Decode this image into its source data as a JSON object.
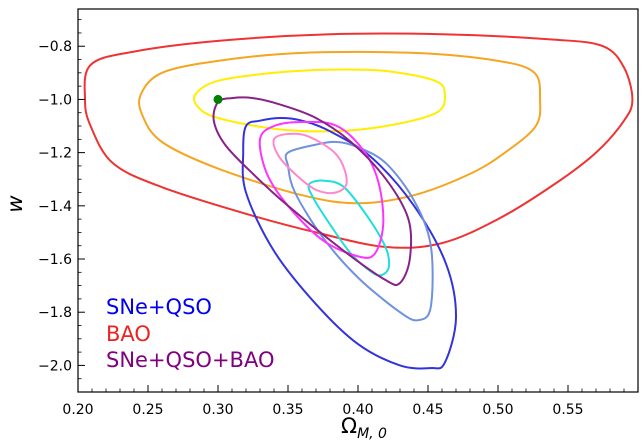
{
  "chart_data": {
    "type": "contour",
    "xlabel": "Ω",
    "xlabel_sub": "M, 0",
    "ylabel": "w",
    "xlim": [
      0.2,
      0.6
    ],
    "ylim": [
      -2.1,
      -0.66
    ],
    "x_ticks": [
      0.2,
      0.25,
      0.3,
      0.35,
      0.4,
      0.45,
      0.5,
      0.55
    ],
    "x_tick_labels": [
      "0.20",
      "0.25",
      "0.30",
      "0.35",
      "0.40",
      "0.45",
      "0.50",
      "0.55"
    ],
    "y_ticks": [
      -0.8,
      -1.0,
      -1.2,
      -1.4,
      -1.6,
      -1.8,
      -2.0
    ],
    "y_tick_labels": [
      "−0.8",
      "−1.0",
      "−1.2",
      "−1.4",
      "−1.6",
      "−1.8",
      "−2.0"
    ],
    "legend": [
      {
        "label": "SNe+QSO",
        "color": "#0000ee"
      },
      {
        "label": "BAO",
        "color": "#ee2222"
      },
      {
        "label": "SNe+QSO+BAO",
        "color": "#800080"
      }
    ],
    "legend_placement": "bottom-left",
    "reference_point": {
      "x": 0.3,
      "y": -1.0,
      "color": "#008000"
    },
    "contours": [
      {
        "color": "#ee3333",
        "points": [
          [
            0.209,
            -0.87
          ],
          [
            0.24,
            -0.82
          ],
          [
            0.3,
            -0.78
          ],
          [
            0.38,
            -0.755
          ],
          [
            0.46,
            -0.755
          ],
          [
            0.54,
            -0.775
          ],
          [
            0.575,
            -0.8
          ],
          [
            0.59,
            -0.88
          ],
          [
            0.596,
            -1.0
          ],
          [
            0.59,
            -1.08
          ],
          [
            0.57,
            -1.2
          ],
          [
            0.54,
            -1.32
          ],
          [
            0.5,
            -1.45
          ],
          [
            0.46,
            -1.54
          ],
          [
            0.42,
            -1.555
          ],
          [
            0.37,
            -1.5
          ],
          [
            0.32,
            -1.43
          ],
          [
            0.26,
            -1.33
          ],
          [
            0.225,
            -1.24
          ],
          [
            0.209,
            -1.1
          ],
          [
            0.205,
            -1.0
          ]
        ]
      },
      {
        "color": "#f5a520",
        "points": [
          [
            0.245,
            -0.98
          ],
          [
            0.26,
            -0.9
          ],
          [
            0.3,
            -0.855
          ],
          [
            0.36,
            -0.825
          ],
          [
            0.44,
            -0.825
          ],
          [
            0.5,
            -0.855
          ],
          [
            0.526,
            -0.9
          ],
          [
            0.53,
            -1.0
          ],
          [
            0.527,
            -1.1
          ],
          [
            0.505,
            -1.2
          ],
          [
            0.48,
            -1.28
          ],
          [
            0.44,
            -1.36
          ],
          [
            0.4,
            -1.39
          ],
          [
            0.36,
            -1.36
          ],
          [
            0.3,
            -1.26
          ],
          [
            0.26,
            -1.16
          ],
          [
            0.246,
            -1.06
          ]
        ]
      },
      {
        "color": "#ffee00",
        "points": [
          [
            0.284,
            -0.98
          ],
          [
            0.3,
            -0.93
          ],
          [
            0.34,
            -0.9
          ],
          [
            0.38,
            -0.888
          ],
          [
            0.42,
            -0.893
          ],
          [
            0.455,
            -0.93
          ],
          [
            0.462,
            -0.98
          ],
          [
            0.456,
            -1.05
          ],
          [
            0.42,
            -1.1
          ],
          [
            0.38,
            -1.12
          ],
          [
            0.34,
            -1.11
          ],
          [
            0.3,
            -1.07
          ],
          [
            0.286,
            -1.03
          ]
        ]
      },
      {
        "color": "#3333dd",
        "points": [
          [
            0.32,
            -1.1
          ],
          [
            0.33,
            -1.08
          ],
          [
            0.345,
            -1.07
          ],
          [
            0.36,
            -1.08
          ],
          [
            0.38,
            -1.12
          ],
          [
            0.41,
            -1.22
          ],
          [
            0.44,
            -1.4
          ],
          [
            0.463,
            -1.62
          ],
          [
            0.47,
            -1.82
          ],
          [
            0.462,
            -1.99
          ],
          [
            0.452,
            -2.01
          ],
          [
            0.43,
            -2.0
          ],
          [
            0.4,
            -1.92
          ],
          [
            0.37,
            -1.77
          ],
          [
            0.34,
            -1.57
          ],
          [
            0.32,
            -1.35
          ],
          [
            0.318,
            -1.2
          ]
        ]
      },
      {
        "color": "#7090e0",
        "points": [
          [
            0.35,
            -1.2
          ],
          [
            0.37,
            -1.17
          ],
          [
            0.385,
            -1.16
          ],
          [
            0.4,
            -1.18
          ],
          [
            0.42,
            -1.24
          ],
          [
            0.44,
            -1.38
          ],
          [
            0.452,
            -1.55
          ],
          [
            0.452,
            -1.78
          ],
          [
            0.443,
            -1.83
          ],
          [
            0.43,
            -1.8
          ],
          [
            0.4,
            -1.67
          ],
          [
            0.375,
            -1.52
          ],
          [
            0.355,
            -1.35
          ],
          [
            0.35,
            -1.25
          ]
        ]
      },
      {
        "color": "#22dddd",
        "points": [
          [
            0.365,
            -1.32
          ],
          [
            0.375,
            -1.305
          ],
          [
            0.39,
            -1.33
          ],
          [
            0.408,
            -1.45
          ],
          [
            0.42,
            -1.56
          ],
          [
            0.422,
            -1.63
          ],
          [
            0.417,
            -1.66
          ],
          [
            0.41,
            -1.65
          ],
          [
            0.395,
            -1.58
          ],
          [
            0.38,
            -1.47
          ],
          [
            0.368,
            -1.37
          ]
        ]
      },
      {
        "color": "#ff33ff",
        "points": [
          [
            0.33,
            -1.15
          ],
          [
            0.34,
            -1.1
          ],
          [
            0.36,
            -1.085
          ],
          [
            0.385,
            -1.1
          ],
          [
            0.405,
            -1.2
          ],
          [
            0.415,
            -1.32
          ],
          [
            0.418,
            -1.47
          ],
          [
            0.412,
            -1.58
          ],
          [
            0.4,
            -1.59
          ],
          [
            0.375,
            -1.53
          ],
          [
            0.35,
            -1.4
          ],
          [
            0.335,
            -1.28
          ]
        ]
      },
      {
        "color": "#ff88cc",
        "points": [
          [
            0.34,
            -1.15
          ],
          [
            0.35,
            -1.13
          ],
          [
            0.365,
            -1.14
          ],
          [
            0.385,
            -1.21
          ],
          [
            0.392,
            -1.31
          ],
          [
            0.384,
            -1.35
          ],
          [
            0.37,
            -1.34
          ],
          [
            0.355,
            -1.28
          ],
          [
            0.343,
            -1.21
          ]
        ]
      },
      {
        "color": "#882288",
        "points": [
          [
            0.3,
            -1.01
          ],
          [
            0.31,
            -0.995
          ],
          [
            0.325,
            -0.995
          ],
          [
            0.345,
            -1.02
          ],
          [
            0.37,
            -1.07
          ],
          [
            0.395,
            -1.16
          ],
          [
            0.42,
            -1.3
          ],
          [
            0.436,
            -1.45
          ],
          [
            0.437,
            -1.6
          ],
          [
            0.43,
            -1.69
          ],
          [
            0.42,
            -1.68
          ],
          [
            0.39,
            -1.57
          ],
          [
            0.35,
            -1.4
          ],
          [
            0.325,
            -1.28
          ],
          [
            0.305,
            -1.17
          ],
          [
            0.297,
            -1.08
          ]
        ]
      }
    ]
  }
}
